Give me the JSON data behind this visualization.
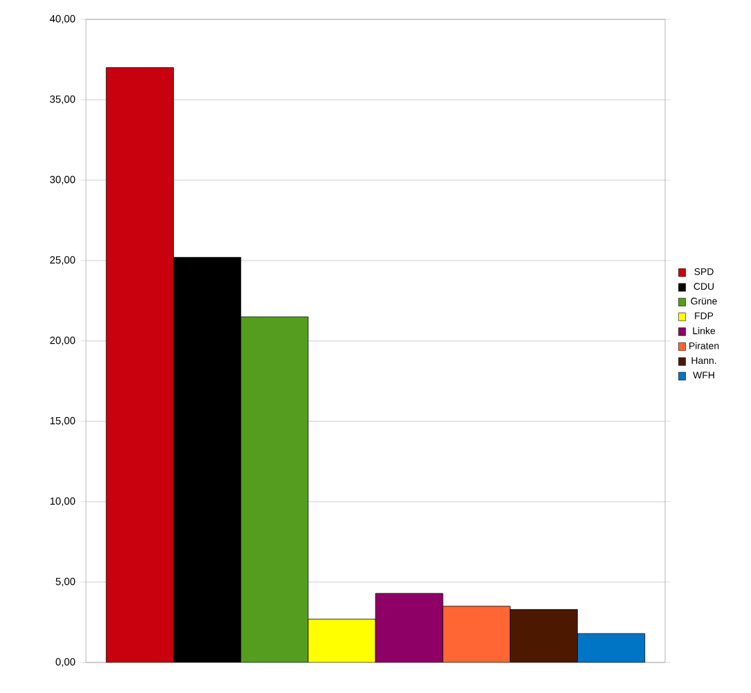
{
  "chart_data": {
    "type": "bar",
    "categories": [
      null
    ],
    "series": [
      {
        "name": "SPD",
        "color": "#c9000e",
        "values": [
          37.0
        ]
      },
      {
        "name": "CDU",
        "color": "#000000",
        "values": [
          25.2
        ]
      },
      {
        "name": "Grüne",
        "color": "#559d1f",
        "values": [
          21.5
        ]
      },
      {
        "name": "FDP",
        "color": "#ffff00",
        "values": [
          2.7
        ]
      },
      {
        "name": "Linke",
        "color": "#8f0067",
        "values": [
          4.3
        ]
      },
      {
        "name": "Piraten",
        "color": "#ff6633",
        "values": [
          3.5
        ]
      },
      {
        "name": "Hann.",
        "color": "#4d1800",
        "values": [
          3.3
        ]
      },
      {
        "name": "WFH",
        "color": "#0074c5",
        "values": [
          1.8
        ]
      }
    ],
    "ylim": [
      0,
      40
    ],
    "yticks": [
      {
        "value": 0,
        "label": "0,00"
      },
      {
        "value": 5,
        "label": "5,00"
      },
      {
        "value": 10,
        "label": "10,00"
      },
      {
        "value": 15,
        "label": "15,00"
      },
      {
        "value": 20,
        "label": "20,00"
      },
      {
        "value": 25,
        "label": "25,00"
      },
      {
        "value": 30,
        "label": "30,00"
      },
      {
        "value": 35,
        "label": "35,00"
      },
      {
        "value": 40,
        "label": "40,00"
      }
    ],
    "grid": "y",
    "legend": "right",
    "tick_labels": "y"
  }
}
